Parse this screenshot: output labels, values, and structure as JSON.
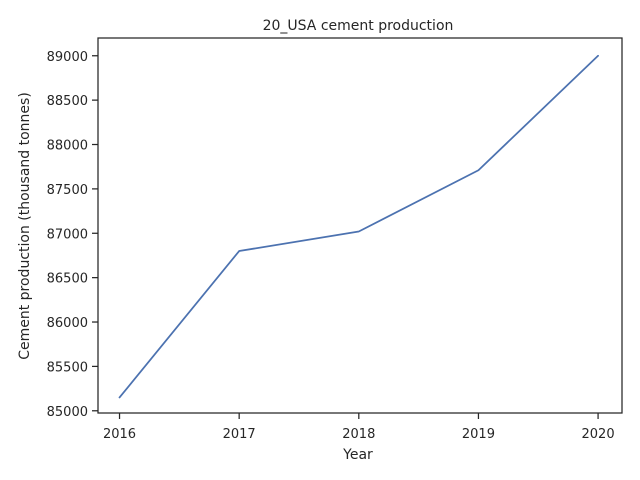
{
  "chart_data": {
    "type": "line",
    "title": "20_USA cement production",
    "xlabel": "Year",
    "ylabel": "Cement production (thousand tonnes)",
    "x": [
      2016,
      2017,
      2018,
      2019,
      2020
    ],
    "series": [
      {
        "name": "Cement production",
        "values": [
          85150,
          86800,
          87020,
          87710,
          89000
        ]
      }
    ],
    "xticks": [
      "2016",
      "2017",
      "2018",
      "2019",
      "2020"
    ],
    "yticks": [
      "85000",
      "85500",
      "86000",
      "86500",
      "87000",
      "87500",
      "88000",
      "88500",
      "89000"
    ],
    "ylim": [
      85000,
      89000
    ],
    "grid": false,
    "line_color": "#4c72b0",
    "axis_color": "#262626"
  }
}
